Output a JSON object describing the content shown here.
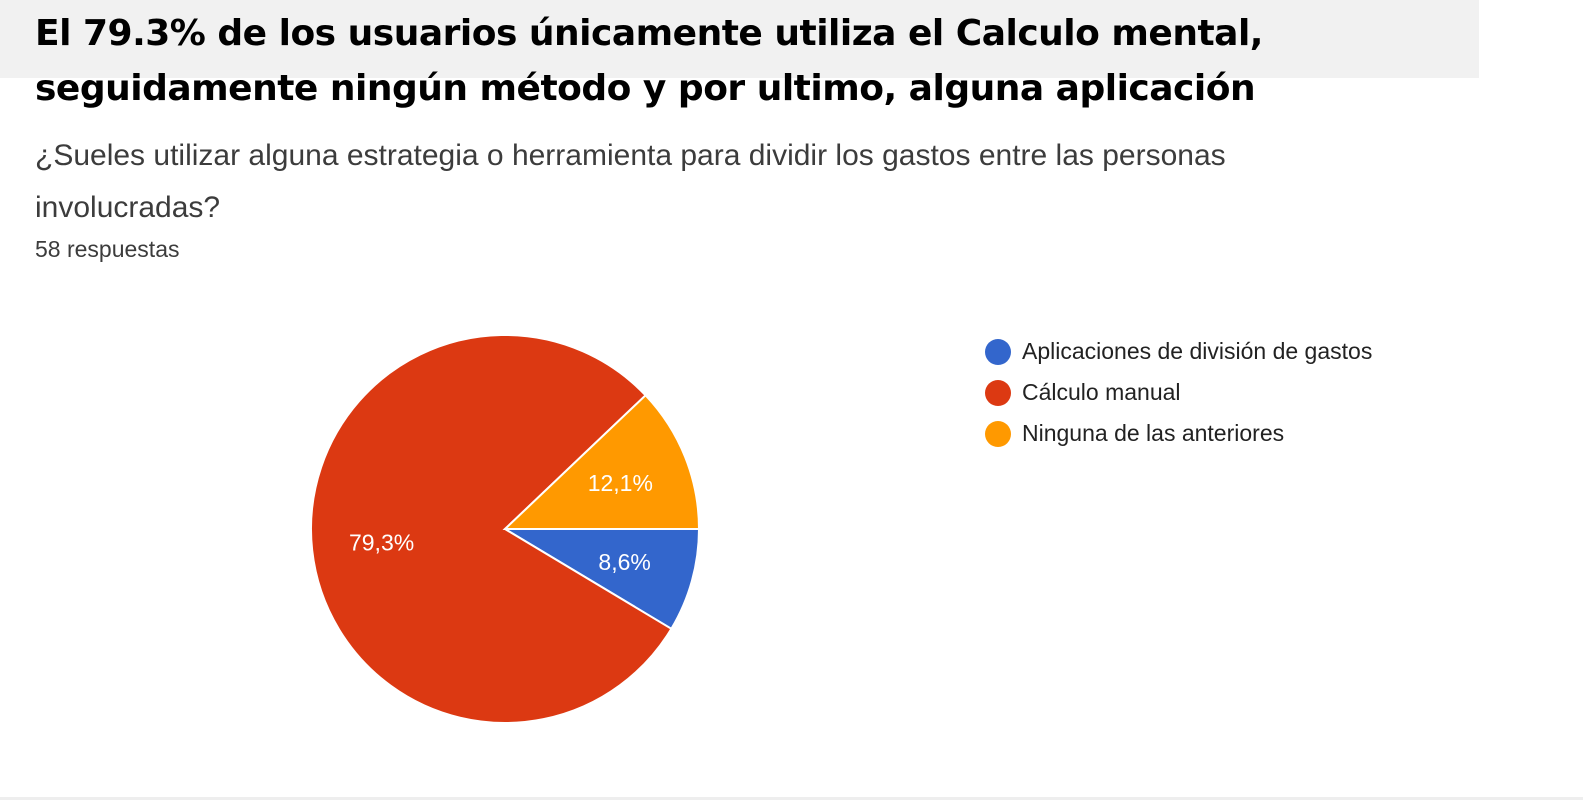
{
  "headline_lines": [
    "El 79.3% de los usuarios únicamente utiliza el Calculo mental,",
    "seguidamente ningún método y por ultimo, alguna aplicación"
  ],
  "question_lines": [
    "¿Sueles utilizar alguna estrategia o herramienta para dividir los gastos entre las personas",
    "involucradas?"
  ],
  "responses": "58 respuestas",
  "colors": {
    "blue": "#3366cc",
    "red": "#dc3912",
    "orange": "#ff9900"
  },
  "chart_data": {
    "type": "pie",
    "legend_position": "right",
    "categories": [
      "Aplicaciones de división de gastos",
      "Cálculo manual",
      "Ninguna de las anteriores"
    ],
    "values": [
      8.6,
      79.3,
      12.1
    ],
    "value_labels": [
      "8,6%",
      "79,3%",
      "12,1%"
    ],
    "colors": [
      "#3366cc",
      "#dc3912",
      "#ff9900"
    ]
  }
}
